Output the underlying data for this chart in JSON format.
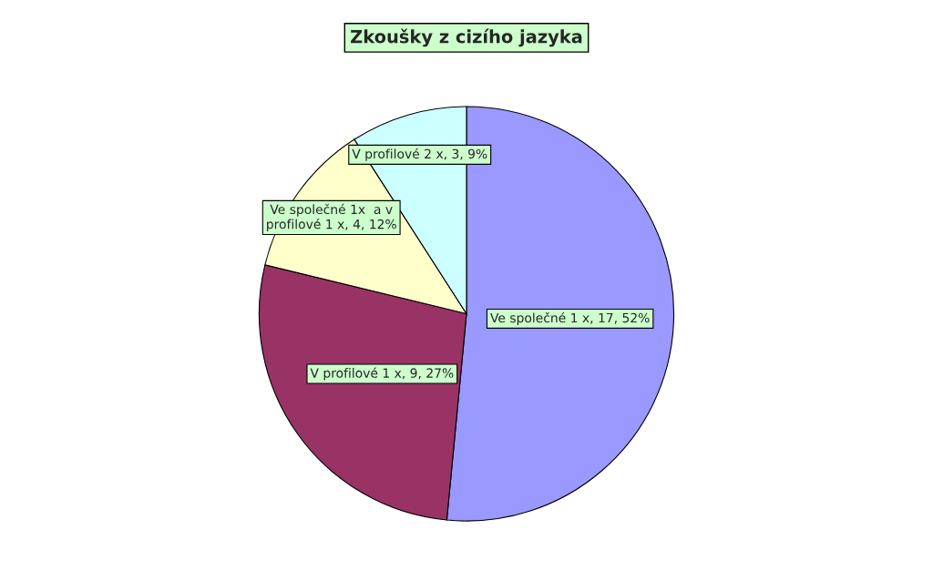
{
  "chart_data": {
    "type": "pie",
    "title": "Zkoušky z cizího jazyka",
    "categories": [
      "Ve společné 1 x",
      "V profilové 1 x",
      "Ve společné 1x  a v profilové 1 x",
      "V profilové 2 x"
    ],
    "values": [
      17,
      9,
      4,
      3
    ],
    "value_labels": [
      "17, 52%",
      "9, 27%",
      "4, 12%",
      "3, 9%"
    ],
    "colors": [
      "#9999ff",
      "#993366",
      "#ffffcc",
      "#ccffff"
    ],
    "legend": false
  }
}
